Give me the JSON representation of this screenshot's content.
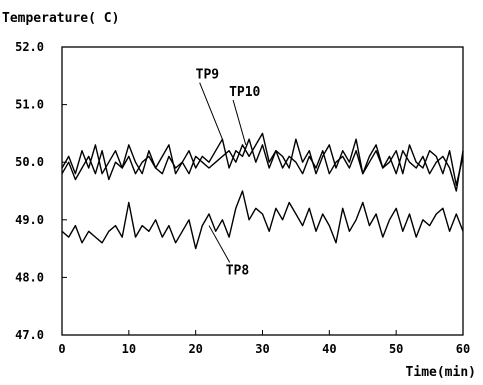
{
  "chart_data": {
    "type": "line",
    "ylabel": "Temperature( C)",
    "xlabel": "Time(min)",
    "xlim": [
      0,
      60
    ],
    "ylim": [
      47.0,
      52.0
    ],
    "x_ticks": [
      "0",
      "10",
      "20",
      "30",
      "40",
      "50",
      "60"
    ],
    "y_ticks": [
      "52.0",
      "51.0",
      "50.0",
      "49.0",
      "48.0",
      "47.0"
    ],
    "grid": false,
    "legend": "none",
    "x": [
      0,
      1,
      2,
      3,
      4,
      5,
      6,
      7,
      8,
      9,
      10,
      11,
      12,
      13,
      14,
      15,
      16,
      17,
      18,
      19,
      20,
      21,
      22,
      23,
      24,
      25,
      26,
      27,
      28,
      29,
      30,
      31,
      32,
      33,
      34,
      35,
      36,
      37,
      38,
      39,
      40,
      41,
      42,
      43,
      44,
      45,
      46,
      47,
      48,
      49,
      50,
      51,
      52,
      53,
      54,
      55,
      56,
      57,
      58,
      59,
      60
    ],
    "series": [
      {
        "name": "TP9",
        "color": "#000000",
        "values": [
          49.9,
          50.1,
          49.8,
          50.2,
          49.9,
          50.3,
          49.8,
          50.0,
          50.2,
          49.9,
          50.3,
          50.0,
          49.8,
          50.2,
          49.9,
          50.1,
          50.3,
          49.8,
          50.0,
          50.2,
          49.9,
          50.1,
          50.0,
          50.2,
          50.4,
          49.9,
          50.2,
          50.1,
          50.4,
          50.0,
          50.3,
          49.9,
          50.2,
          50.1,
          49.9,
          50.4,
          50.0,
          50.2,
          49.8,
          50.1,
          50.3,
          49.9,
          50.2,
          50.0,
          50.4,
          49.8,
          50.1,
          50.3,
          49.9,
          50.0,
          50.2,
          49.8,
          50.3,
          50.0,
          49.9,
          50.2,
          50.1,
          49.8,
          50.2,
          49.6,
          50.1
        ]
      },
      {
        "name": "TP10",
        "color": "#000000",
        "values": [
          49.8,
          50.0,
          49.7,
          49.9,
          50.1,
          49.8,
          50.2,
          49.7,
          50.0,
          49.9,
          50.1,
          49.8,
          50.0,
          50.1,
          49.9,
          49.8,
          50.1,
          49.9,
          50.0,
          49.8,
          50.1,
          50.0,
          49.9,
          50.0,
          50.1,
          50.2,
          50.0,
          50.3,
          50.1,
          50.3,
          50.5,
          50.0,
          50.2,
          49.9,
          50.1,
          50.0,
          49.8,
          50.1,
          49.9,
          50.2,
          49.8,
          50.0,
          50.1,
          49.9,
          50.2,
          49.8,
          50.0,
          50.2,
          49.9,
          50.1,
          49.8,
          50.2,
          50.0,
          49.9,
          50.1,
          49.8,
          50.0,
          50.1,
          49.9,
          49.5,
          50.2
        ]
      },
      {
        "name": "TP8",
        "color": "#000000",
        "values": [
          48.8,
          48.7,
          48.9,
          48.6,
          48.8,
          48.7,
          48.6,
          48.8,
          48.9,
          48.7,
          49.3,
          48.7,
          48.9,
          48.8,
          49.0,
          48.7,
          48.9,
          48.6,
          48.8,
          49.0,
          48.5,
          48.9,
          49.1,
          48.8,
          49.0,
          48.7,
          49.2,
          49.5,
          49.0,
          49.2,
          49.1,
          48.8,
          49.2,
          49.0,
          49.3,
          49.1,
          48.9,
          49.2,
          48.8,
          49.1,
          48.9,
          48.6,
          49.2,
          48.8,
          49.0,
          49.3,
          48.9,
          49.1,
          48.7,
          49.0,
          49.2,
          48.8,
          49.1,
          48.7,
          49.0,
          48.9,
          49.1,
          49.2,
          48.8,
          49.1,
          48.8
        ]
      }
    ],
    "annotations": [
      {
        "text": "TP9",
        "x": 20.0,
        "y": 51.45,
        "point_x": 24.0,
        "point_y": 50.4
      },
      {
        "text": "TP10",
        "x": 25.0,
        "y": 51.15,
        "point_x": 27.5,
        "point_y": 50.3
      },
      {
        "text": "TP8",
        "x": 24.5,
        "y": 48.05,
        "point_x": 22.0,
        "point_y": 48.9
      }
    ]
  }
}
